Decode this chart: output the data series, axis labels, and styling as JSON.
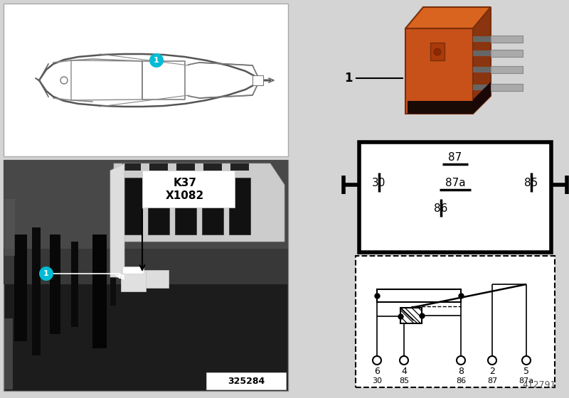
{
  "bg_color": "#d4d4d4",
  "white": "#ffffff",
  "black": "#000000",
  "relay_orange_front": "#c8511a",
  "relay_orange_top": "#d96420",
  "relay_orange_side": "#8b3510",
  "relay_dark": "#2a1a10",
  "pin_metal": "#aaaaaa",
  "cyan_label": "#00bcd4",
  "part_number": "325284",
  "doc_number": "412791",
  "k37_label": "K37",
  "x1082_label": "X1082",
  "pin_box_87": "87",
  "pin_box_30": "30",
  "pin_box_87a": "87a",
  "pin_box_85": "85",
  "pin_box_86": "86",
  "schematic_row1": [
    "6",
    "4",
    "8",
    "2",
    "5"
  ],
  "schematic_row2": [
    "30",
    "85",
    "86",
    "87",
    "87a"
  ],
  "label1": "1"
}
